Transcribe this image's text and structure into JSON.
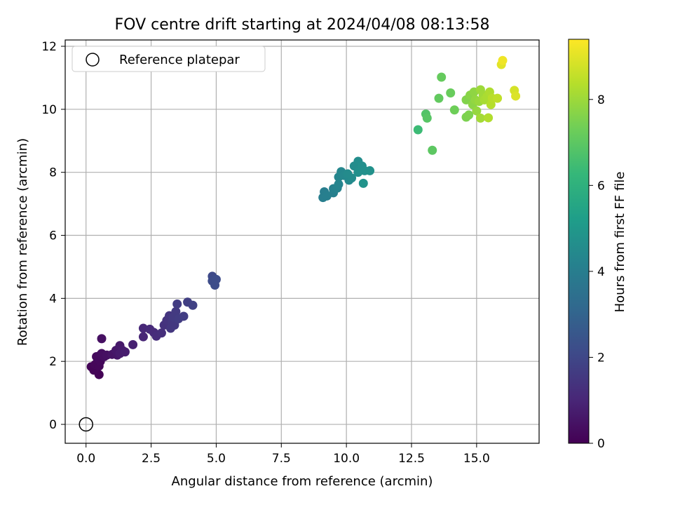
{
  "chart_data": {
    "type": "scatter",
    "title": "FOV centre drift starting at 2024/04/08 08:13:58",
    "xlabel": "Angular distance from reference (arcmin)",
    "ylabel": "Rotation from reference (arcmin)",
    "xlim": [
      -0.8,
      17.4
    ],
    "ylim": [
      -0.6,
      12.2
    ],
    "xticks": [
      0.0,
      2.5,
      5.0,
      7.5,
      10.0,
      12.5,
      15.0
    ],
    "xtick_labels": [
      "0.0",
      "2.5",
      "5.0",
      "7.5",
      "10.0",
      "12.5",
      "15.0"
    ],
    "yticks": [
      0,
      2,
      4,
      6,
      8,
      10,
      12
    ],
    "ytick_labels": [
      "0",
      "2",
      "4",
      "6",
      "8",
      "10",
      "12"
    ],
    "grid": true,
    "legend": {
      "position": "top-left",
      "entries": [
        {
          "label": "Reference platepar",
          "marker": "open-circle"
        }
      ]
    },
    "reference_point": {
      "x": 0.0,
      "y": 0.0
    },
    "colorbar": {
      "label": "Hours from first FF file",
      "colormap": "viridis",
      "range": [
        0,
        9.4
      ],
      "ticks": [
        0,
        2,
        4,
        6,
        8
      ],
      "tick_labels": [
        "0",
        "2",
        "4",
        "6",
        "8"
      ]
    },
    "colormap_stops": [
      "#440154",
      "#482878",
      "#3e4a89",
      "#31688e",
      "#26828e",
      "#1f9e89",
      "#35b779",
      "#6ece58",
      "#b5de2b",
      "#fde725"
    ],
    "points": [
      {
        "x": 0.5,
        "y": 1.58,
        "c": 0.05
      },
      {
        "x": 0.3,
        "y": 1.72,
        "c": 0.1
      },
      {
        "x": 0.2,
        "y": 1.83,
        "c": 0.1
      },
      {
        "x": 0.35,
        "y": 1.9,
        "c": 0.15
      },
      {
        "x": 0.5,
        "y": 1.85,
        "c": 0.15
      },
      {
        "x": 0.45,
        "y": 2.05,
        "c": 0.2
      },
      {
        "x": 0.55,
        "y": 2.0,
        "c": 0.2
      },
      {
        "x": 0.4,
        "y": 2.15,
        "c": 0.25
      },
      {
        "x": 0.55,
        "y": 2.2,
        "c": 0.3
      },
      {
        "x": 0.7,
        "y": 2.15,
        "c": 0.35
      },
      {
        "x": 0.6,
        "y": 2.25,
        "c": 0.35
      },
      {
        "x": 0.8,
        "y": 2.2,
        "c": 0.4
      },
      {
        "x": 0.6,
        "y": 2.72,
        "c": 0.4
      },
      {
        "x": 1.0,
        "y": 2.22,
        "c": 0.5
      },
      {
        "x": 1.2,
        "y": 2.2,
        "c": 0.55
      },
      {
        "x": 1.15,
        "y": 2.35,
        "c": 0.6
      },
      {
        "x": 1.3,
        "y": 2.5,
        "c": 0.65
      },
      {
        "x": 1.4,
        "y": 2.35,
        "c": 0.7
      },
      {
        "x": 1.3,
        "y": 2.25,
        "c": 0.7
      },
      {
        "x": 1.5,
        "y": 2.3,
        "c": 0.75
      },
      {
        "x": 1.8,
        "y": 2.53,
        "c": 0.85
      },
      {
        "x": 2.2,
        "y": 2.78,
        "c": 1.0
      },
      {
        "x": 2.2,
        "y": 3.05,
        "c": 1.05
      },
      {
        "x": 2.45,
        "y": 3.02,
        "c": 1.1
      },
      {
        "x": 2.6,
        "y": 2.92,
        "c": 1.15
      },
      {
        "x": 2.7,
        "y": 2.8,
        "c": 1.2
      },
      {
        "x": 2.9,
        "y": 2.9,
        "c": 1.25
      },
      {
        "x": 3.0,
        "y": 3.15,
        "c": 1.35
      },
      {
        "x": 3.1,
        "y": 3.3,
        "c": 1.4
      },
      {
        "x": 3.2,
        "y": 3.45,
        "c": 1.45
      },
      {
        "x": 3.3,
        "y": 3.25,
        "c": 1.5
      },
      {
        "x": 3.25,
        "y": 3.05,
        "c": 1.5
      },
      {
        "x": 3.4,
        "y": 3.15,
        "c": 1.55
      },
      {
        "x": 3.35,
        "y": 3.4,
        "c": 1.6
      },
      {
        "x": 3.45,
        "y": 3.58,
        "c": 1.6
      },
      {
        "x": 3.5,
        "y": 3.82,
        "c": 1.65
      },
      {
        "x": 3.55,
        "y": 3.35,
        "c": 1.65
      },
      {
        "x": 3.75,
        "y": 3.43,
        "c": 1.7
      },
      {
        "x": 3.9,
        "y": 3.88,
        "c": 1.75
      },
      {
        "x": 4.1,
        "y": 3.78,
        "c": 1.8
      },
      {
        "x": 4.85,
        "y": 4.7,
        "c": 2.1
      },
      {
        "x": 4.85,
        "y": 4.55,
        "c": 2.15
      },
      {
        "x": 5.0,
        "y": 4.6,
        "c": 2.2
      },
      {
        "x": 4.95,
        "y": 4.42,
        "c": 2.2
      },
      {
        "x": 9.1,
        "y": 7.2,
        "c": 4.0
      },
      {
        "x": 9.15,
        "y": 7.38,
        "c": 4.0
      },
      {
        "x": 9.25,
        "y": 7.25,
        "c": 4.05
      },
      {
        "x": 9.5,
        "y": 7.35,
        "c": 4.1
      },
      {
        "x": 9.5,
        "y": 7.48,
        "c": 4.15
      },
      {
        "x": 9.65,
        "y": 7.5,
        "c": 4.2
      },
      {
        "x": 9.7,
        "y": 7.62,
        "c": 4.25
      },
      {
        "x": 9.7,
        "y": 7.85,
        "c": 4.3
      },
      {
        "x": 9.8,
        "y": 8.02,
        "c": 4.35
      },
      {
        "x": 9.9,
        "y": 7.9,
        "c": 4.4
      },
      {
        "x": 10.1,
        "y": 7.75,
        "c": 4.45
      },
      {
        "x": 10.05,
        "y": 7.95,
        "c": 4.5
      },
      {
        "x": 10.2,
        "y": 7.82,
        "c": 4.5
      },
      {
        "x": 10.3,
        "y": 8.2,
        "c": 4.55
      },
      {
        "x": 10.45,
        "y": 8.35,
        "c": 4.6
      },
      {
        "x": 10.5,
        "y": 8.1,
        "c": 4.6
      },
      {
        "x": 10.6,
        "y": 8.2,
        "c": 4.65
      },
      {
        "x": 10.45,
        "y": 8.0,
        "c": 4.65
      },
      {
        "x": 10.7,
        "y": 8.05,
        "c": 4.7
      },
      {
        "x": 10.9,
        "y": 8.05,
        "c": 4.75
      },
      {
        "x": 10.65,
        "y": 7.65,
        "c": 4.8
      },
      {
        "x": 12.75,
        "y": 9.35,
        "c": 6.4
      },
      {
        "x": 13.05,
        "y": 9.85,
        "c": 6.8
      },
      {
        "x": 13.1,
        "y": 9.72,
        "c": 6.9
      },
      {
        "x": 13.3,
        "y": 8.7,
        "c": 7.0
      },
      {
        "x": 13.55,
        "y": 10.35,
        "c": 7.1
      },
      {
        "x": 13.65,
        "y": 11.02,
        "c": 7.15
      },
      {
        "x": 14.0,
        "y": 10.52,
        "c": 7.2
      },
      {
        "x": 14.15,
        "y": 9.98,
        "c": 7.3
      },
      {
        "x": 14.6,
        "y": 9.75,
        "c": 7.5
      },
      {
        "x": 14.7,
        "y": 9.82,
        "c": 7.55
      },
      {
        "x": 14.6,
        "y": 10.3,
        "c": 7.6
      },
      {
        "x": 14.75,
        "y": 10.45,
        "c": 7.7
      },
      {
        "x": 14.85,
        "y": 10.15,
        "c": 7.75
      },
      {
        "x": 14.9,
        "y": 10.55,
        "c": 7.8
      },
      {
        "x": 14.95,
        "y": 10.3,
        "c": 7.85
      },
      {
        "x": 15.0,
        "y": 9.95,
        "c": 7.9
      },
      {
        "x": 15.1,
        "y": 10.25,
        "c": 7.95
      },
      {
        "x": 15.15,
        "y": 10.62,
        "c": 8.0
      },
      {
        "x": 15.25,
        "y": 10.45,
        "c": 8.05
      },
      {
        "x": 15.15,
        "y": 9.72,
        "c": 8.1
      },
      {
        "x": 15.3,
        "y": 10.3,
        "c": 8.15
      },
      {
        "x": 15.4,
        "y": 10.4,
        "c": 8.2
      },
      {
        "x": 15.5,
        "y": 10.55,
        "c": 8.25
      },
      {
        "x": 15.45,
        "y": 9.73,
        "c": 8.3
      },
      {
        "x": 15.55,
        "y": 10.15,
        "c": 8.35
      },
      {
        "x": 15.6,
        "y": 10.35,
        "c": 8.4
      },
      {
        "x": 15.8,
        "y": 10.35,
        "c": 8.5
      },
      {
        "x": 15.95,
        "y": 11.42,
        "c": 9.0
      },
      {
        "x": 16.0,
        "y": 11.55,
        "c": 9.2
      },
      {
        "x": 16.45,
        "y": 10.6,
        "c": 8.8
      },
      {
        "x": 16.5,
        "y": 10.42,
        "c": 8.9
      }
    ]
  }
}
